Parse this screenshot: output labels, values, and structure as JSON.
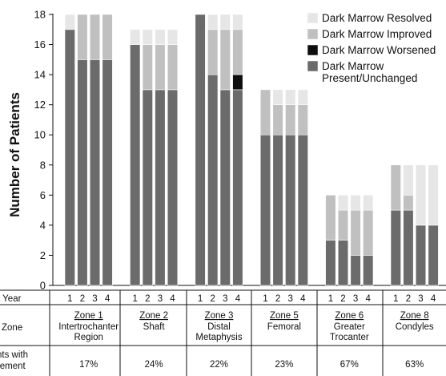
{
  "chart_data": {
    "type": "bar",
    "stacked": true,
    "ylabel": "Number of Patients",
    "ylim": [
      0,
      18
    ],
    "yticks": [
      0,
      2,
      4,
      6,
      8,
      10,
      12,
      14,
      16,
      18
    ],
    "grid": false,
    "legend_position": "top-right",
    "legend": [
      {
        "name": "Dark Marrow Resolved",
        "color": "#e6e6e6"
      },
      {
        "name": "Dark Marrow Improved",
        "color": "#c0c0c0"
      },
      {
        "name": "Dark Marrow Worsened",
        "color": "#0d0d0d"
      },
      {
        "name": "Dark Marrow Present/Unchanged",
        "color": "#6b6b6b"
      }
    ],
    "table_row_labels": [
      "t Year",
      "Zone",
      "nts with",
      "vement"
    ],
    "years": [
      "1",
      "2",
      "3",
      "4"
    ],
    "zones": [
      {
        "name": "Zone 1",
        "desc": [
          "Intertrochanter",
          "Region"
        ],
        "pct": "17%",
        "bars": [
          {
            "present": 17,
            "worsened": 0,
            "improved": 0,
            "resolved": 1
          },
          {
            "present": 15,
            "worsened": 0,
            "improved": 3,
            "resolved": 0
          },
          {
            "present": 15,
            "worsened": 0,
            "improved": 3,
            "resolved": 0
          },
          {
            "present": 15,
            "worsened": 0,
            "improved": 3,
            "resolved": 0
          }
        ]
      },
      {
        "name": "Zone 2",
        "desc": [
          "Shaft"
        ],
        "pct": "24%",
        "bars": [
          {
            "present": 16,
            "worsened": 0,
            "improved": 0,
            "resolved": 1
          },
          {
            "present": 13,
            "worsened": 0,
            "improved": 3,
            "resolved": 1
          },
          {
            "present": 13,
            "worsened": 0,
            "improved": 3,
            "resolved": 1
          },
          {
            "present": 13,
            "worsened": 0,
            "improved": 3,
            "resolved": 1
          }
        ]
      },
      {
        "name": "Zone 3",
        "desc": [
          "Distal",
          "Metaphysis"
        ],
        "pct": "22%",
        "bars": [
          {
            "present": 18,
            "worsened": 0,
            "improved": 0,
            "resolved": 0
          },
          {
            "present": 14,
            "worsened": 0,
            "improved": 3,
            "resolved": 1
          },
          {
            "present": 13,
            "worsened": 0,
            "improved": 4,
            "resolved": 1
          },
          {
            "present": 13,
            "worsened": 1,
            "improved": 3,
            "resolved": 1
          }
        ]
      },
      {
        "name": "Zone 5",
        "desc": [
          "Femoral"
        ],
        "pct": "23%",
        "bars": [
          {
            "present": 10,
            "worsened": 0,
            "improved": 3,
            "resolved": 0
          },
          {
            "present": 10,
            "worsened": 0,
            "improved": 2,
            "resolved": 1
          },
          {
            "present": 10,
            "worsened": 0,
            "improved": 2,
            "resolved": 1
          },
          {
            "present": 10,
            "worsened": 0,
            "improved": 2,
            "resolved": 1
          }
        ]
      },
      {
        "name": "Zone 6",
        "desc": [
          "Greater",
          "Trocanter"
        ],
        "pct": "67%",
        "bars": [
          {
            "present": 3,
            "worsened": 0,
            "improved": 3,
            "resolved": 0
          },
          {
            "present": 3,
            "worsened": 0,
            "improved": 2,
            "resolved": 1
          },
          {
            "present": 2,
            "worsened": 0,
            "improved": 3,
            "resolved": 1
          },
          {
            "present": 2,
            "worsened": 0,
            "improved": 3,
            "resolved": 1
          }
        ]
      },
      {
        "name": "Zone 8",
        "desc": [
          "Condyles"
        ],
        "pct": "63%",
        "bars": [
          {
            "present": 5,
            "worsened": 0,
            "improved": 3,
            "resolved": 0
          },
          {
            "present": 5,
            "worsened": 0,
            "improved": 1,
            "resolved": 2
          },
          {
            "present": 4,
            "worsened": 0,
            "improved": 0,
            "resolved": 4
          },
          {
            "present": 4,
            "worsened": 0,
            "improved": 0,
            "resolved": 4
          }
        ]
      }
    ]
  }
}
